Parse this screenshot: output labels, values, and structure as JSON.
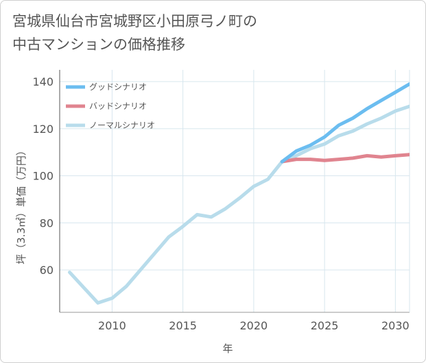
{
  "title_line1": "宮城県仙台市宮城野区小田原弓ノ町の",
  "title_line2": "中古マンションの価格推移",
  "chart_data": {
    "type": "line",
    "xlabel": "年",
    "ylabel": "坪（3.3㎡）単価（万円）",
    "xlim": [
      2006.3,
      2031
    ],
    "ylim": [
      42,
      145
    ],
    "xticks": [
      2010,
      2015,
      2020,
      2025,
      2030
    ],
    "yticks": [
      60,
      80,
      100,
      120,
      140
    ],
    "grid": true,
    "legend_position": "top-left",
    "series": [
      {
        "name": "グッドシナリオ",
        "color": "#6bbdf0",
        "x": [
          2022,
          2023,
          2024,
          2025,
          2026,
          2027,
          2028,
          2029,
          2030,
          2031
        ],
        "y": [
          106,
          110.5,
          113,
          116.5,
          121.5,
          124.5,
          128.5,
          132,
          135.5,
          139
        ]
      },
      {
        "name": "バッドシナリオ",
        "color": "#e0848f",
        "x": [
          2022,
          2023,
          2024,
          2025,
          2026,
          2027,
          2028,
          2029,
          2030,
          2031
        ],
        "y": [
          106,
          107,
          107,
          106.5,
          107,
          107.5,
          108.5,
          108,
          108.5,
          109
        ]
      },
      {
        "name": "ノーマルシナリオ",
        "color": "#b8dceb",
        "x": [
          2007,
          2008,
          2009,
          2010,
          2011,
          2012,
          2013,
          2014,
          2015,
          2016,
          2017,
          2018,
          2019,
          2020,
          2021,
          2022,
          2023,
          2024,
          2025,
          2026,
          2027,
          2028,
          2029,
          2030,
          2031
        ],
        "y": [
          59,
          52.5,
          46,
          48,
          53,
          60,
          67,
          74,
          78.5,
          83.5,
          82.5,
          86,
          90.5,
          95.5,
          98.5,
          106,
          108.5,
          111.5,
          113.5,
          117,
          119,
          122,
          124.5,
          127.5,
          129.5
        ]
      }
    ]
  }
}
